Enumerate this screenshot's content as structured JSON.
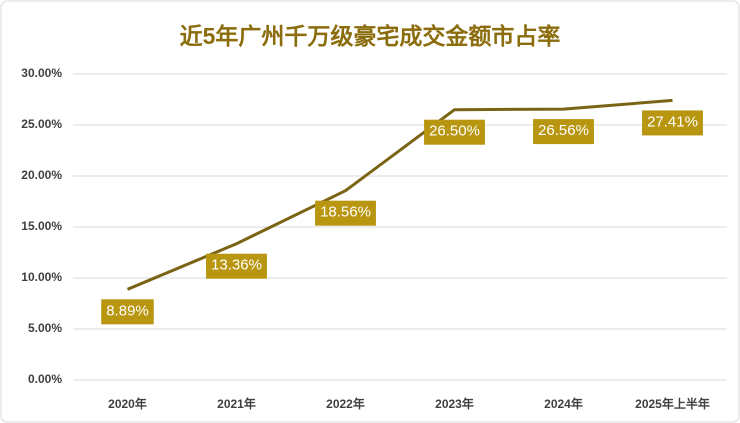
{
  "chart_data": {
    "type": "line",
    "title": "近5年广州千万级豪宅成交金额市占率",
    "categories": [
      "2020年",
      "2021年",
      "2022年",
      "2023年",
      "2024年",
      "2025年上半年"
    ],
    "series": [
      {
        "color": "#7a6414",
        "label_color": "#b8960f",
        "values": [
          8.89,
          13.36,
          18.56,
          26.5,
          26.56,
          27.41
        ],
        "value_labels": [
          "8.89%",
          "13.36%",
          "18.56%",
          "26.50%",
          "26.56%",
          "27.41%"
        ]
      }
    ],
    "ylim": [
      0,
      30
    ],
    "yticks": [
      {
        "value": 0,
        "label": "0.00%"
      },
      {
        "value": 5,
        "label": "5.00%"
      },
      {
        "value": 10,
        "label": "10.00%"
      },
      {
        "value": 15,
        "label": "15.00%"
      },
      {
        "value": 20,
        "label": "20.00%"
      },
      {
        "value": 25,
        "label": "25.00%"
      },
      {
        "value": 30,
        "label": "30.00%"
      }
    ],
    "grid": true
  }
}
